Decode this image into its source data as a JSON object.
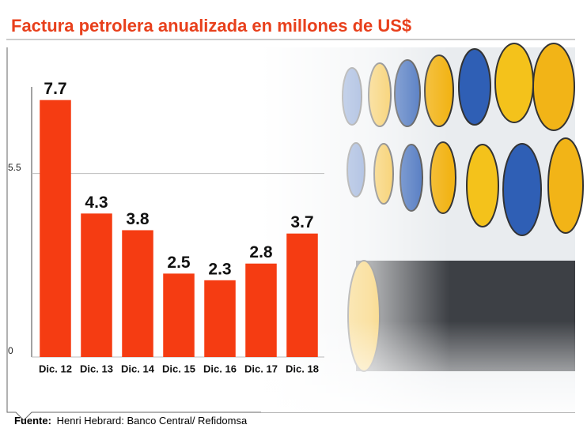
{
  "chart_data": {
    "type": "bar",
    "title": "Factura petrolera anualizada en millones de US$",
    "categories": [
      "Dic. 12",
      "Dic. 13",
      "Dic. 14",
      "Dic. 15",
      "Dic. 16",
      "Dic. 17",
      "Dic. 18"
    ],
    "values": [
      7.7,
      4.3,
      3.8,
      2.5,
      2.3,
      2.8,
      3.7
    ],
    "color": "#f53c12",
    "ylim": [
      0,
      8
    ],
    "yticks": [
      0,
      5.5
    ],
    "grid": true,
    "source_label": "Fuente:",
    "source": "Henri Hebrard: Banco Central/ Refidomsa"
  }
}
